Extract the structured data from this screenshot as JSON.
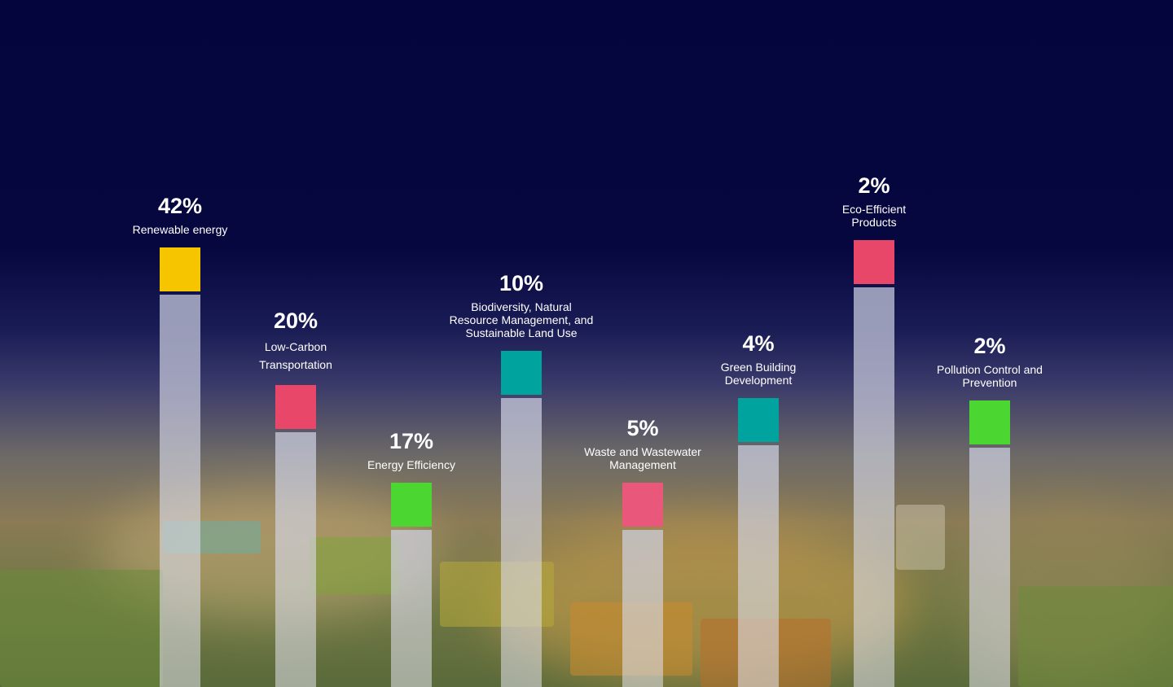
{
  "chart_data": {
    "type": "bar",
    "categories": [
      "Renewable energy",
      "Low-Carbon Transportation",
      "Energy Efficiency",
      "Biodiversity, Natural Resource Management, and Sustainable Land Use",
      "Waste and Wastewater Management",
      "Green Building Development",
      "Eco-Efficient Products",
      "Pollution Control and Prevention"
    ],
    "values": [
      42,
      20,
      17,
      10,
      5,
      4,
      2,
      2
    ],
    "value_labels": [
      "42%",
      "20%",
      "17%",
      "10%",
      "5%",
      "4%",
      "2%",
      "2%"
    ],
    "label_lines": [
      [
        "Renewable energy"
      ],
      [
        "Low-Carbon",
        "Transportation"
      ],
      [
        "Energy Efficiency"
      ],
      [
        "Biodiversity, Natural",
        "Resource Management, and",
        "Sustainable Land Use"
      ],
      [
        "Waste and Wastewater",
        "Management"
      ],
      [
        "Green Building",
        "Development"
      ],
      [
        "Eco-Efficient",
        "Products"
      ],
      [
        "Pollution Control and",
        "Prevention"
      ]
    ],
    "colors": [
      "#f7c400",
      "#e8476a",
      "#4cd631",
      "#00a39e",
      "#e9587a",
      "#00a39e",
      "#e8476a",
      "#4cd631"
    ],
    "title": "",
    "xlabel": "",
    "ylabel": "",
    "grid": false,
    "legend": "none"
  }
}
